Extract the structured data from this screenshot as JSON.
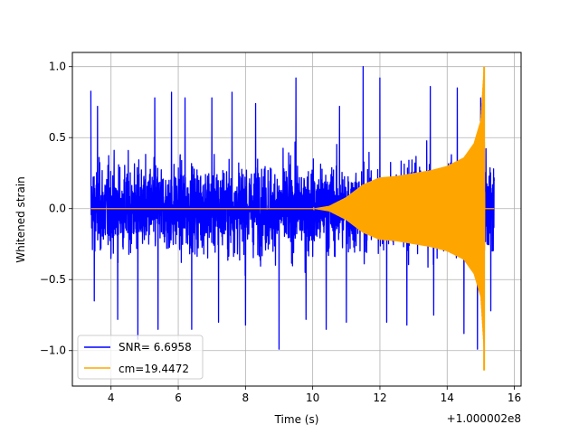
{
  "chart_data": {
    "type": "line",
    "title": "",
    "xlabel": "Time (s)",
    "ylabel": "Whitened strain",
    "x_offset_label": "+1.000002e8",
    "xlim": [
      2.85,
      16.2
    ],
    "ylim": [
      -1.25,
      1.1
    ],
    "grid": true,
    "legend_position": "lower-left",
    "x_ticks": [
      {
        "value": 4,
        "label": "4"
      },
      {
        "value": 6,
        "label": "6"
      },
      {
        "value": 8,
        "label": "8"
      },
      {
        "value": 10,
        "label": "10"
      },
      {
        "value": 12,
        "label": "12"
      },
      {
        "value": 14,
        "label": "14"
      },
      {
        "value": 16,
        "label": "16"
      }
    ],
    "y_ticks": [
      {
        "value": -1.0,
        "label": "−1.0"
      },
      {
        "value": -0.5,
        "label": "−0.5"
      },
      {
        "value": 0.0,
        "label": "0.0"
      },
      {
        "value": 0.5,
        "label": "0.5"
      },
      {
        "value": 1.0,
        "label": "1.0"
      }
    ],
    "series": [
      {
        "name": "SNR= 6.6958",
        "color": "#0000ff",
        "style": "noise",
        "x_range": [
          3.4,
          15.4
        ],
        "envelope": 0.5,
        "peak_samples": [
          [
            3.4,
            0.83
          ],
          [
            3.6,
            0.72
          ],
          [
            4.2,
            0.75
          ],
          [
            4.8,
            0.88
          ],
          [
            5.3,
            0.78
          ],
          [
            5.8,
            0.82
          ],
          [
            6.2,
            0.78
          ],
          [
            7.0,
            0.78
          ],
          [
            7.6,
            0.82
          ],
          [
            8.3,
            0.74
          ],
          [
            9.0,
            1.0
          ],
          [
            9.5,
            0.92
          ],
          [
            10.4,
            0.83
          ],
          [
            10.8,
            0.72
          ],
          [
            11.5,
            1.0
          ],
          [
            12.0,
            0.92
          ],
          [
            12.8,
            0.9
          ],
          [
            13.5,
            0.86
          ],
          [
            14.3,
            0.85
          ],
          [
            15.0,
            0.78
          ]
        ],
        "trough_samples": [
          [
            3.5,
            -0.65
          ],
          [
            4.2,
            -0.78
          ],
          [
            4.8,
            -0.92
          ],
          [
            5.4,
            -0.85
          ],
          [
            6.4,
            -0.85
          ],
          [
            7.2,
            -0.8
          ],
          [
            8.0,
            -0.82
          ],
          [
            9.0,
            -0.99
          ],
          [
            9.8,
            -0.78
          ],
          [
            10.4,
            -0.85
          ],
          [
            11.0,
            -0.8
          ],
          [
            12.2,
            -0.8
          ],
          [
            12.8,
            -0.82
          ],
          [
            13.6,
            -0.75
          ],
          [
            14.5,
            -0.88
          ],
          [
            14.9,
            -0.99
          ],
          [
            15.3,
            -0.72
          ]
        ]
      },
      {
        "name": "cm=19.4472",
        "color": "#ffa500",
        "style": "chirp",
        "envelope": [
          [
            3.4,
            0.0
          ],
          [
            10.0,
            0.0
          ],
          [
            10.5,
            0.02
          ],
          [
            11.0,
            0.08
          ],
          [
            11.5,
            0.17
          ],
          [
            12.0,
            0.22
          ],
          [
            12.5,
            0.23
          ],
          [
            13.0,
            0.25
          ],
          [
            13.5,
            0.27
          ],
          [
            14.0,
            0.3
          ],
          [
            14.5,
            0.36
          ],
          [
            14.8,
            0.46
          ],
          [
            15.0,
            0.62
          ],
          [
            15.1,
            1.0
          ],
          [
            15.12,
            0.0
          ],
          [
            15.4,
            0.0
          ]
        ],
        "min_value": -1.14
      }
    ]
  }
}
